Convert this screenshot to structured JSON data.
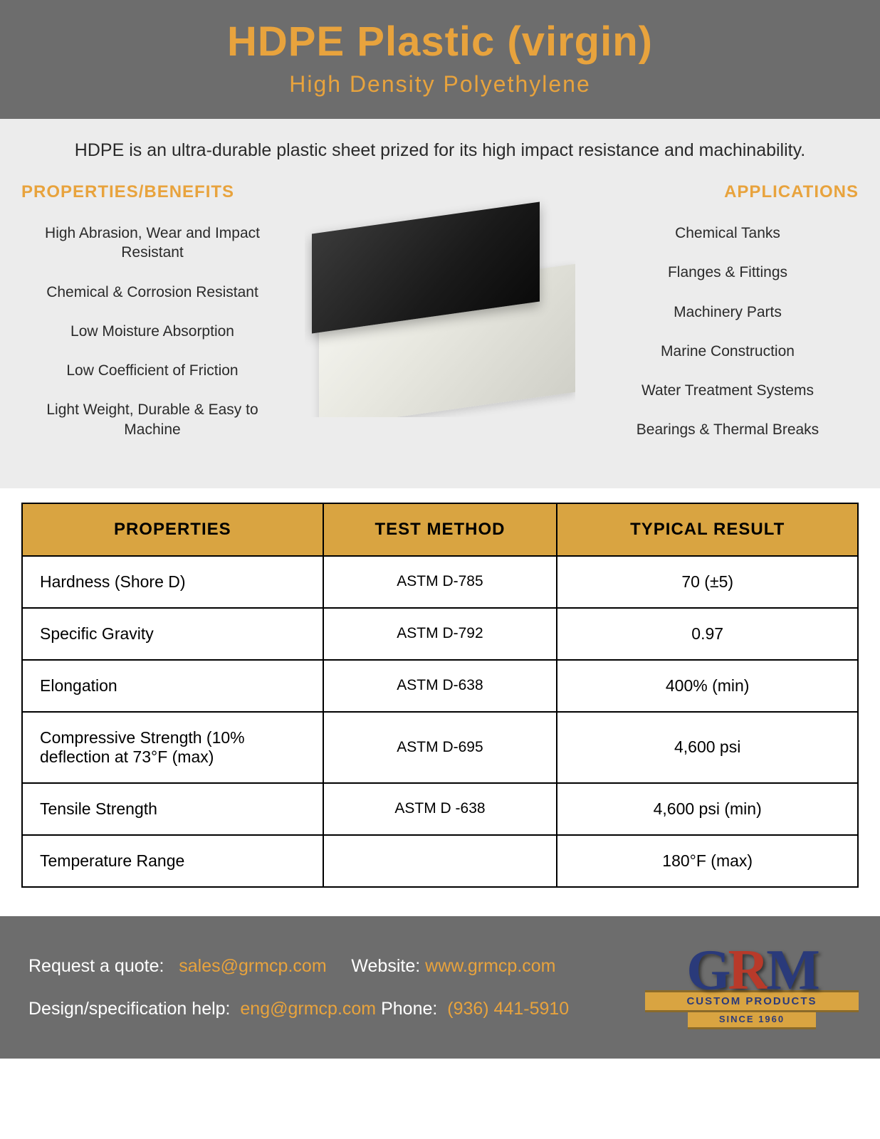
{
  "colors": {
    "header_bg": "#6d6d6d",
    "accent": "#e8a33d",
    "intro_bg": "#ececec",
    "table_header_bg": "#d9a441",
    "text_dark": "#2a2a2a",
    "white": "#ffffff",
    "black": "#000000",
    "logo_blue": "#2a3a7a",
    "logo_red": "#b83a2a"
  },
  "header": {
    "title": "HDPE Plastic (virgin)",
    "subtitle": "High Density Polyethylene"
  },
  "intro": "HDPE is an ultra-durable plastic sheet prized for its high impact resistance and machinability.",
  "properties": {
    "title": "PROPERTIES/BENEFITS",
    "items": [
      "High Abrasion, Wear and Impact Resistant",
      "Chemical & Corrosion Resistant",
      "Low Moisture Absorption",
      "Low Coefficient of Friction",
      "Light Weight, Durable & Easy to Machine"
    ]
  },
  "applications": {
    "title": "APPLICATIONS",
    "items": [
      "Chemical Tanks",
      "Flanges & Fittings",
      "Machinery Parts",
      "Marine Construction",
      "Water Treatment Systems",
      "Bearings & Thermal Breaks"
    ]
  },
  "table": {
    "headers": [
      "PROPERTIES",
      "TEST METHOD",
      "TYPICAL RESULT"
    ],
    "rows": [
      [
        "Hardness (Shore D)",
        "ASTM D-785",
        "70 (±5)"
      ],
      [
        "Specific Gravity",
        "ASTM D-792",
        "0.97"
      ],
      [
        "Elongation",
        "ASTM D-638",
        "400% (min)"
      ],
      [
        "Compressive Strength (10% deflection at 73°F (max)",
        "ASTM D-695",
        "4,600 psi"
      ],
      [
        "Tensile Strength",
        "ASTM D -638",
        "4,600 psi (min)"
      ],
      [
        "Temperature Range",
        "",
        "180°F (max)"
      ]
    ]
  },
  "footer": {
    "quote_label": "Request a quote:",
    "quote_email": "sales@grmcp.com",
    "website_label": "Website:",
    "website_url": "www.grmcp.com",
    "design_label": "Design/specification help:",
    "design_email": "eng@grmcp.com",
    "phone_label": "Phone:",
    "phone_number": "(936) 441-5910"
  },
  "logo": {
    "letters": [
      "G",
      "R",
      "M"
    ],
    "line1": "CUSTOM PRODUCTS",
    "line2": "SINCE 1960"
  }
}
